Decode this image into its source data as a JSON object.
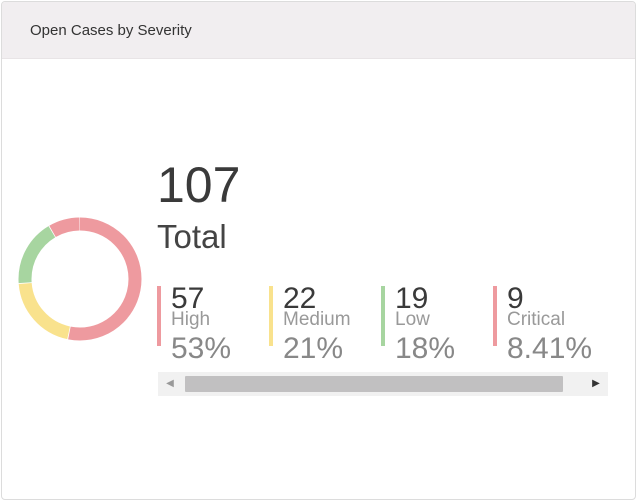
{
  "header": {
    "title": "Open Cases by Severity"
  },
  "summary": {
    "total_value": "107",
    "total_label": "Total"
  },
  "stats": [
    {
      "count": "57",
      "label": "High",
      "percent": "53%",
      "value": 57,
      "color": "#ee9a9f"
    },
    {
      "count": "22",
      "label": "Medium",
      "percent": "21%",
      "value": 22,
      "color": "#f9e28d"
    },
    {
      "count": "19",
      "label": "Low",
      "percent": "18%",
      "value": 19,
      "color": "#a7d5a0"
    },
    {
      "count": "9",
      "label": "Critical",
      "percent": "8.41%",
      "value": 9,
      "color": "#ee9a9f"
    }
  ],
  "scrollbar": {
    "left_icon": "triangle-left-icon",
    "right_icon": "triangle-right-icon"
  }
}
